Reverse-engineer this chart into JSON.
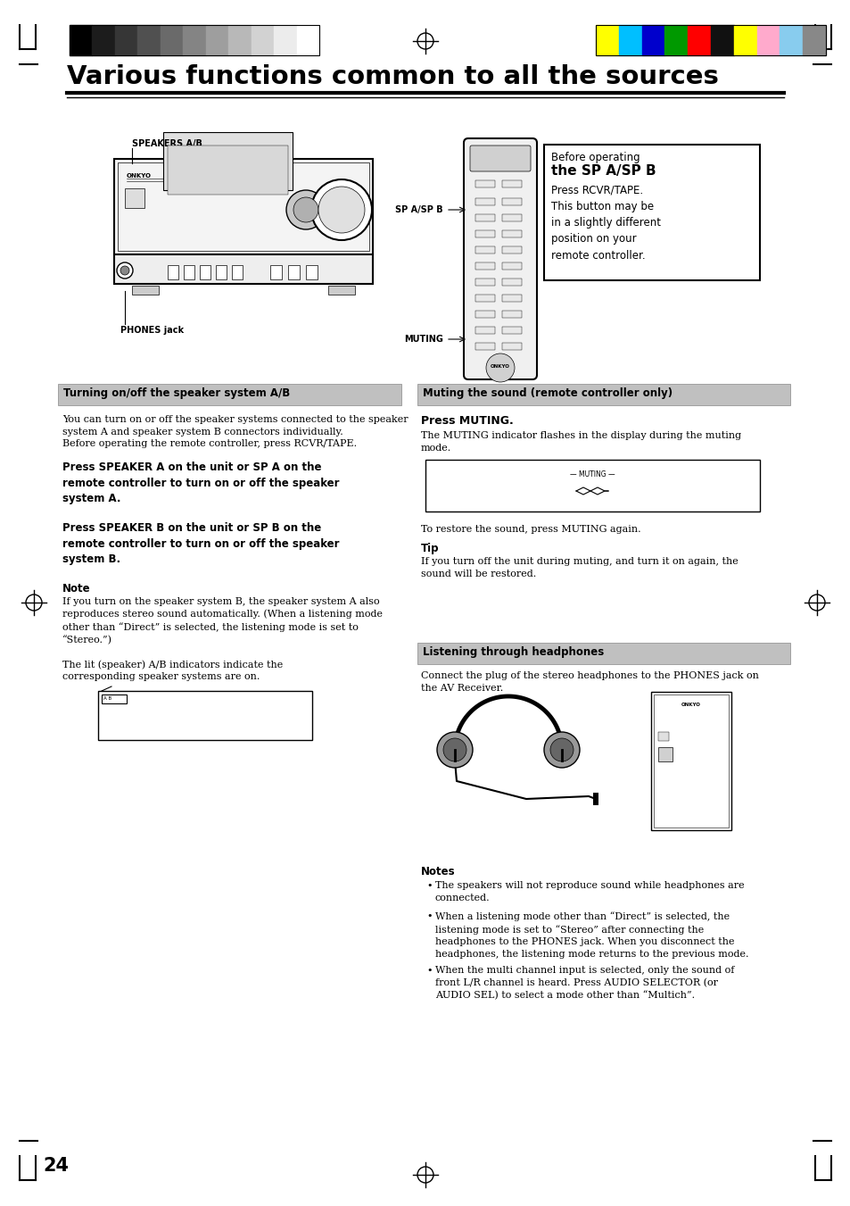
{
  "page_bg": "#ffffff",
  "title": "Various functions common to all the sources",
  "page_number": "24",
  "color_strip_left": [
    "#000000",
    "#1c1c1c",
    "#363636",
    "#505050",
    "#6a6a6a",
    "#848484",
    "#9e9e9e",
    "#b8b8b8",
    "#d2d2d2",
    "#ececec",
    "#ffffff"
  ],
  "color_strip_right": [
    "#ffff00",
    "#00bfff",
    "#0000cc",
    "#009900",
    "#ff0000",
    "#111111",
    "#ffff00",
    "#ffaacc",
    "#88ccee",
    "#888888"
  ],
  "section1_title": "  Turning on/off the speaker system A/B",
  "section2_title": "  Muting the sound (remote controller only)",
  "section3_title": "  Listening through headphones",
  "speakers_ab_label": "SPEAKERS A/B",
  "phones_jack_label": "PHONES jack",
  "sp_aspb_label": "SP A/SP B",
  "muting_label": "MUTING",
  "before_op_line1": "Before operating",
  "before_op_line2": "the SP A/SP B",
  "before_op_body": "Press RCVR/TAPE.\nThis button may be\nin a slightly different\nposition on your\nremote controller.",
  "press_muting_bold": "Press MUTING.",
  "press_muting_text": "The MUTING indicator flashes in the display during the muting\nmode.",
  "restore_sound_text": "To restore the sound, press MUTING again.",
  "tip_title": "Tip",
  "tip_text": "If you turn off the unit during muting, and turn it on again, the\nsound will be restored.",
  "listen_headphones_text": "Connect the plug of the stereo headphones to the PHONES jack on\nthe AV Receiver.",
  "notes_title": "Notes",
  "note1": "The speakers will not reproduce sound while headphones are\nconnected.",
  "note2": "When a listening mode other than “Direct” is selected, the\nlistening mode is set to “Stereo” after connecting the\nheadphones to the PHONES jack. When you disconnect the\nheadphones, the listening mode returns to the previous mode.",
  "note3": "When the multi channel input is selected, only the sound of\nfront L/R channel is heard. Press AUDIO SELECTOR (or\nAUDIO SEL) to select a mode other than “Multich”.",
  "para1_line1": "You can turn on or off the speaker systems connected to the speaker",
  "para1_line2": "system A and speaker system B connectors individually.",
  "para1_line3": "Before operating the remote controller, press RCVR/TAPE.",
  "press_spa_bold": "Press SPEAKER A on the unit or SP A on the\nremote controller to turn on or off the speaker\nsystem A.",
  "press_spb_bold": "Press SPEAKER B on the unit or SP B on the\nremote controller to turn on or off the speaker\nsystem B.",
  "note_title": "Note",
  "note_para": "If you turn on the speaker system B, the speaker system A also\nreproduces stereo sound automatically. (When a listening mode\nother than “Direct” is selected, the listening mode is set to\n“Stereo.”)",
  "lit_speaker_text": "The lit (speaker) A/B indicators indicate the\ncorresponding speaker systems are on."
}
